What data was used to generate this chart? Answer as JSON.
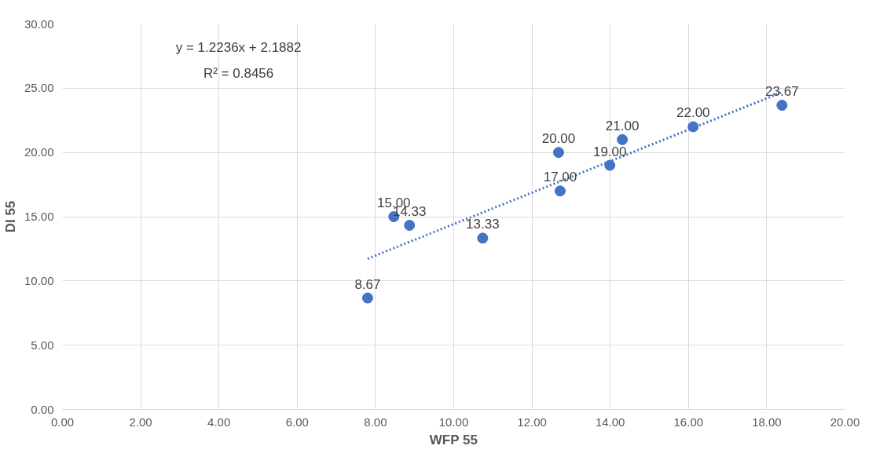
{
  "chart_data": {
    "type": "scatter",
    "xlabel": "WFP 55",
    "ylabel": "DI 55",
    "x": [
      7.8,
      8.47,
      8.87,
      10.74,
      12.68,
      12.72,
      13.99,
      14.31,
      16.12,
      18.39
    ],
    "series": [
      {
        "color": "#4472c4",
        "marker": "circle",
        "values": [
          8.67,
          15.0,
          14.33,
          13.33,
          20.0,
          17.0,
          19.0,
          21.0,
          22.0,
          23.67
        ],
        "value_labels": [
          "8.67",
          "15.00",
          "14.33",
          "13.33",
          "20.00",
          "17.00",
          "19.00",
          "21.00",
          "22.00",
          "23.67"
        ]
      },
      {
        "type": "line",
        "color": "#4472c4",
        "line_style": "dotted",
        "x": [
          7.8,
          18.39
        ],
        "values": [
          11.73,
          24.69
        ]
      }
    ],
    "annotations": [
      "y = 1.2236x + 2.1882",
      "R² = 0.8456"
    ],
    "xlim": [
      0,
      20
    ],
    "ylim": [
      0,
      30
    ],
    "xticks": [
      {
        "value": 0,
        "label": "0.00"
      },
      {
        "value": 2,
        "label": "2.00"
      },
      {
        "value": 4,
        "label": "4.00"
      },
      {
        "value": 6,
        "label": "6.00"
      },
      {
        "value": 8,
        "label": "8.00"
      },
      {
        "value": 10,
        "label": "10.00"
      },
      {
        "value": 12,
        "label": "12.00"
      },
      {
        "value": 14,
        "label": "14.00"
      },
      {
        "value": 16,
        "label": "16.00"
      },
      {
        "value": 18,
        "label": "18.00"
      },
      {
        "value": 20,
        "label": "20.00"
      }
    ],
    "yticks": [
      {
        "value": 0,
        "label": "0.00"
      },
      {
        "value": 5,
        "label": "5.00"
      },
      {
        "value": 10,
        "label": "10.00"
      },
      {
        "value": 15,
        "label": "15.00"
      },
      {
        "value": 20,
        "label": "20.00"
      },
      {
        "value": 25,
        "label": "25.00"
      },
      {
        "value": 30,
        "label": "30.00"
      }
    ],
    "grid": true
  }
}
